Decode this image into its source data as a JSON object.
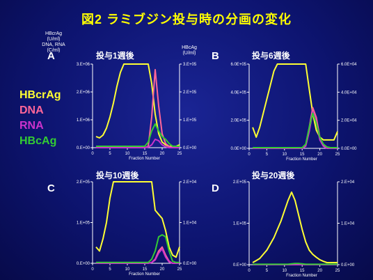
{
  "slide_title": "図2 ラミブジン投与時の分画の変化",
  "left_axis_label": [
    "HBcrAg",
    "(U/ml)",
    "DNA, RNA",
    "(C/ml)"
  ],
  "right_axis_label": [
    "HBcAg",
    "(U/ml)"
  ],
  "legend": [
    {
      "name": "HBcrAg",
      "color": "#ffff33"
    },
    {
      "name": "DNA",
      "color": "#ff6699"
    },
    {
      "name": "RNA",
      "color": "#cc33cc"
    },
    {
      "name": "HBcAg",
      "color": "#33cc33"
    }
  ],
  "chart_data": [
    {
      "type": "line",
      "panel": "A",
      "title": "投与1週後",
      "xlabel": "Fraction Number",
      "xlim": [
        0,
        25
      ],
      "xticks": [
        0,
        5,
        10,
        15,
        20,
        25
      ],
      "left_ylim": [
        0,
        3000000
      ],
      "left_ticks": [
        "0.E+00",
        "1.E+06",
        "2.E+06",
        "3.E+06"
      ],
      "right_ylim": [
        0,
        300000
      ],
      "right_ticks": [
        "0.E+00",
        "1.E+05",
        "2.E+05",
        "3.E+05"
      ],
      "series": [
        {
          "name": "HBcrAg",
          "color": "#ffff33",
          "axis": "left",
          "x": [
            1,
            2,
            3,
            4,
            5,
            6,
            7,
            8,
            9,
            10,
            11,
            12,
            13,
            14,
            15,
            16,
            17,
            18,
            19,
            20,
            21,
            22,
            23,
            24,
            25
          ],
          "y": [
            400000,
            350000,
            450000,
            700000,
            1100000,
            1600000,
            2200000,
            2700000,
            3000000,
            3000000,
            3000000,
            3000000,
            3000000,
            3000000,
            3000000,
            3000000,
            2300000,
            1200000,
            500000,
            200000,
            100000,
            50000,
            50000,
            50000,
            100000
          ]
        },
        {
          "name": "DNA",
          "color": "#ff6699",
          "axis": "left",
          "x": [
            1,
            2,
            3,
            4,
            5,
            6,
            7,
            8,
            9,
            10,
            11,
            12,
            13,
            14,
            15,
            16,
            17,
            18,
            19,
            20,
            21,
            22,
            23,
            24,
            25
          ],
          "y": [
            0,
            0,
            0,
            0,
            0,
            0,
            0,
            0,
            0,
            0,
            0,
            0,
            0,
            0,
            0,
            50000,
            1100000,
            2800000,
            1500000,
            500000,
            150000,
            50000,
            0,
            0,
            0
          ]
        },
        {
          "name": "RNA",
          "color": "#cc33cc",
          "axis": "left",
          "x": [
            1,
            2,
            3,
            4,
            5,
            6,
            7,
            8,
            9,
            10,
            11,
            12,
            13,
            14,
            15,
            16,
            17,
            18,
            19,
            20,
            21,
            22,
            23,
            24,
            25
          ],
          "y": [
            0,
            0,
            0,
            0,
            0,
            0,
            0,
            0,
            0,
            0,
            0,
            0,
            0,
            0,
            0,
            20000,
            100000,
            300000,
            250000,
            100000,
            30000,
            0,
            0,
            0,
            0
          ]
        },
        {
          "name": "HBcAg",
          "color": "#33cc33",
          "axis": "right",
          "x": [
            1,
            2,
            3,
            4,
            5,
            6,
            7,
            8,
            9,
            10,
            11,
            12,
            13,
            14,
            15,
            16,
            17,
            18,
            19,
            20,
            21,
            22,
            23,
            24,
            25
          ],
          "y": [
            5000,
            5000,
            5000,
            5000,
            5000,
            5000,
            5000,
            5000,
            5000,
            5000,
            5000,
            5000,
            5000,
            5000,
            5000,
            20000,
            60000,
            85000,
            60000,
            40000,
            30000,
            15000,
            5000,
            5000,
            5000
          ]
        }
      ]
    },
    {
      "type": "line",
      "panel": "B",
      "title": "投与6週後",
      "xlabel": "Fraction Number",
      "xlim": [
        0,
        25
      ],
      "xticks": [
        0,
        5,
        10,
        15,
        20,
        25
      ],
      "left_ylim": [
        0,
        600000
      ],
      "left_ticks": [
        "0.0E+00",
        "2.0E+05",
        "4.0E+05",
        "6.0E+05"
      ],
      "right_ylim": [
        0,
        60000
      ],
      "right_ticks": [
        "0.0E+00",
        "2.0E+04",
        "4.0E+04",
        "6.0E+04"
      ],
      "series": [
        {
          "name": "HBcrAg",
          "color": "#ffff33",
          "axis": "left",
          "x": [
            1,
            2,
            3,
            4,
            5,
            6,
            7,
            8,
            9,
            10,
            11,
            12,
            13,
            14,
            15,
            16,
            17,
            18,
            19,
            20,
            21,
            22,
            23,
            24,
            25
          ],
          "y": [
            150000,
            80000,
            150000,
            250000,
            350000,
            450000,
            550000,
            600000,
            600000,
            600000,
            600000,
            600000,
            600000,
            600000,
            600000,
            600000,
            420000,
            250000,
            130000,
            80000,
            60000,
            60000,
            60000,
            60000,
            120000
          ]
        },
        {
          "name": "DNA",
          "color": "#ff6699",
          "axis": "left",
          "x": [
            1,
            2,
            3,
            4,
            5,
            6,
            7,
            8,
            9,
            10,
            11,
            12,
            13,
            14,
            15,
            16,
            17,
            18,
            19,
            20,
            21,
            22,
            23,
            24,
            25
          ],
          "y": [
            0,
            0,
            0,
            0,
            0,
            0,
            0,
            0,
            0,
            0,
            0,
            0,
            0,
            0,
            0,
            20000,
            150000,
            290000,
            220000,
            80000,
            20000,
            0,
            0,
            0,
            0
          ]
        },
        {
          "name": "RNA",
          "color": "#cc33cc",
          "axis": "left",
          "x": [
            1,
            2,
            3,
            4,
            5,
            6,
            7,
            8,
            9,
            10,
            11,
            12,
            13,
            14,
            15,
            16,
            17,
            18,
            19,
            20,
            21,
            22,
            23,
            24,
            25
          ],
          "y": [
            0,
            0,
            0,
            0,
            0,
            0,
            0,
            0,
            0,
            0,
            0,
            0,
            0,
            0,
            0,
            15000,
            120000,
            260000,
            190000,
            60000,
            15000,
            0,
            0,
            0,
            0
          ]
        },
        {
          "name": "HBcAg",
          "color": "#33cc33",
          "axis": "right",
          "x": [
            1,
            2,
            3,
            4,
            5,
            6,
            7,
            8,
            9,
            10,
            11,
            12,
            13,
            14,
            15,
            16,
            17,
            18,
            19,
            20,
            21,
            22,
            23,
            24,
            25
          ],
          "y": [
            500,
            500,
            500,
            500,
            500,
            500,
            500,
            500,
            500,
            500,
            500,
            500,
            500,
            500,
            500,
            3000,
            15000,
            25000,
            18000,
            8000,
            3000,
            1000,
            500,
            500,
            500
          ]
        }
      ]
    },
    {
      "type": "line",
      "panel": "C",
      "title": "投与10週後",
      "xlabel": "Fraction Number",
      "xlim": [
        0,
        25
      ],
      "xticks": [
        0,
        5,
        10,
        15,
        20,
        25
      ],
      "left_ylim": [
        0,
        200000
      ],
      "left_ticks": [
        "0.E+00",
        "1.E+05",
        "2.E+05"
      ],
      "right_ylim": [
        0,
        20000
      ],
      "right_ticks": [
        "0.E+00",
        "1.E+04",
        "2.E+04"
      ],
      "series": [
        {
          "name": "HBcrAg",
          "color": "#ffff33",
          "axis": "left",
          "x": [
            1,
            2,
            3,
            4,
            5,
            6,
            7,
            8,
            9,
            10,
            11,
            12,
            13,
            14,
            15,
            16,
            17,
            18,
            19,
            20,
            21,
            22,
            23,
            24,
            25
          ],
          "y": [
            40000,
            30000,
            60000,
            100000,
            160000,
            200000,
            200000,
            200000,
            200000,
            200000,
            200000,
            200000,
            200000,
            200000,
            200000,
            200000,
            200000,
            130000,
            120000,
            110000,
            80000,
            40000,
            20000,
            15000,
            40000
          ]
        },
        {
          "name": "DNA",
          "color": "#ff6699",
          "axis": "left",
          "x": [
            1,
            2,
            3,
            4,
            5,
            6,
            7,
            8,
            9,
            10,
            11,
            12,
            13,
            14,
            15,
            16,
            17,
            18,
            19,
            20,
            21,
            22,
            23,
            24,
            25
          ],
          "y": [
            0,
            0,
            0,
            0,
            0,
            0,
            0,
            0,
            0,
            0,
            0,
            0,
            0,
            0,
            0,
            0,
            2000,
            10000,
            30000,
            40000,
            20000,
            5000,
            0,
            0,
            0
          ]
        },
        {
          "name": "RNA",
          "color": "#cc33cc",
          "axis": "left",
          "x": [
            1,
            2,
            3,
            4,
            5,
            6,
            7,
            8,
            9,
            10,
            11,
            12,
            13,
            14,
            15,
            16,
            17,
            18,
            19,
            20,
            21,
            22,
            23,
            24,
            25
          ],
          "y": [
            0,
            0,
            0,
            0,
            0,
            0,
            0,
            0,
            0,
            0,
            0,
            0,
            0,
            0,
            0,
            0,
            2000,
            8000,
            25000,
            35000,
            15000,
            3000,
            0,
            0,
            0
          ]
        },
        {
          "name": "HBcAg",
          "color": "#33cc33",
          "axis": "right",
          "x": [
            1,
            2,
            3,
            4,
            5,
            6,
            7,
            8,
            9,
            10,
            11,
            12,
            13,
            14,
            15,
            16,
            17,
            18,
            19,
            20,
            21,
            22,
            23,
            24,
            25
          ],
          "y": [
            200,
            200,
            200,
            200,
            200,
            200,
            200,
            200,
            200,
            200,
            200,
            200,
            200,
            200,
            200,
            200,
            1000,
            3000,
            6500,
            7000,
            6500,
            3000,
            500,
            200,
            200
          ]
        }
      ]
    },
    {
      "type": "line",
      "panel": "D",
      "title": "投与20週後",
      "xlabel": "Fraction Number",
      "xlim": [
        0,
        25
      ],
      "xticks": [
        0,
        5,
        10,
        15,
        20,
        25
      ],
      "left_ylim": [
        0,
        200000
      ],
      "left_ticks": [
        "0.E+00",
        "1.E+05",
        "2.E+05"
      ],
      "right_ylim": [
        0,
        20000
      ],
      "right_ticks": [
        "0.E+00",
        "1.E+04",
        "2.E+04"
      ],
      "series": [
        {
          "name": "HBcrAg",
          "color": "#ffff33",
          "axis": "left",
          "x": [
            1,
            2,
            3,
            4,
            5,
            6,
            7,
            8,
            9,
            10,
            11,
            12,
            13,
            14,
            15,
            16,
            17,
            18,
            19,
            20,
            21,
            22,
            23,
            24,
            25
          ],
          "y": [
            5000,
            10000,
            15000,
            25000,
            35000,
            50000,
            65000,
            85000,
            105000,
            130000,
            155000,
            175000,
            155000,
            120000,
            85000,
            55000,
            35000,
            25000,
            18000,
            12000,
            8000,
            5000,
            5000,
            5000,
            5000
          ]
        },
        {
          "name": "DNA",
          "color": "#ff6699",
          "axis": "left",
          "x": [
            1,
            2,
            3,
            4,
            5,
            6,
            7,
            8,
            9,
            10,
            11,
            12,
            13,
            14,
            15,
            16,
            17,
            18,
            19,
            20,
            21,
            22,
            23,
            24,
            25
          ],
          "y": [
            0,
            0,
            0,
            0,
            0,
            0,
            0,
            0,
            0,
            0,
            0,
            0,
            0,
            0,
            0,
            0,
            0,
            0,
            0,
            0,
            0,
            0,
            0,
            0,
            0
          ]
        },
        {
          "name": "RNA",
          "color": "#cc33cc",
          "axis": "left",
          "x": [
            1,
            2,
            3,
            4,
            5,
            6,
            7,
            8,
            9,
            10,
            11,
            12,
            13,
            14,
            15,
            16,
            17,
            18,
            19,
            20,
            21,
            22,
            23,
            24,
            25
          ],
          "y": [
            0,
            0,
            0,
            0,
            0,
            0,
            0,
            0,
            0,
            0,
            0,
            0,
            0,
            0,
            0,
            0,
            0,
            0,
            0,
            0,
            0,
            0,
            0,
            0,
            0
          ]
        },
        {
          "name": "HBcAg",
          "color": "#33cc33",
          "axis": "right",
          "x": [
            1,
            2,
            3,
            4,
            5,
            6,
            7,
            8,
            9,
            10,
            11,
            12,
            13,
            14,
            15,
            16,
            17,
            18,
            19,
            20,
            21,
            22,
            23,
            24,
            25
          ],
          "y": [
            100,
            100,
            100,
            100,
            100,
            100,
            100,
            100,
            100,
            100,
            100,
            200,
            300,
            300,
            200,
            100,
            100,
            100,
            100,
            100,
            100,
            100,
            100,
            100,
            100
          ]
        }
      ]
    }
  ]
}
